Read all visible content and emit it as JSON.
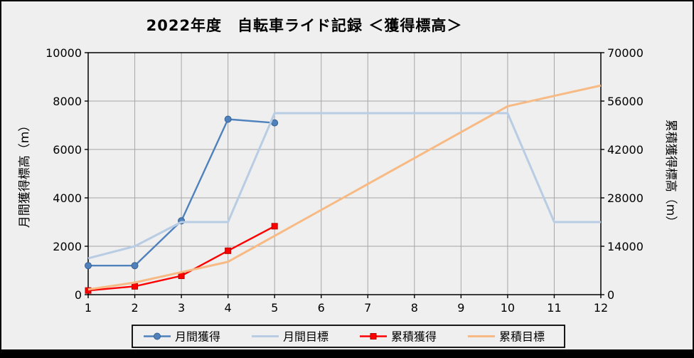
{
  "page": {
    "background": "#efefef",
    "gridline_color": "#a6a6a6",
    "border_color": "#000000"
  },
  "chart_data": {
    "type": "line",
    "title": "2022年度　自転車ライド記録 ＜獲得標高＞",
    "x": [
      1,
      2,
      3,
      4,
      5,
      6,
      7,
      8,
      9,
      10,
      11,
      12
    ],
    "left_axis": {
      "label": "月間獲得標高（m）",
      "min": 0,
      "max": 10000,
      "ticks": [
        0,
        2000,
        4000,
        6000,
        8000,
        10000
      ]
    },
    "right_axis": {
      "label": "累積獲得標高（m）",
      "min": 0,
      "max": 70000,
      "ticks": [
        0,
        14000,
        28000,
        42000,
        56000,
        70000
      ]
    },
    "grid": true,
    "legend_position": "bottom",
    "series": [
      {
        "id": "monthly-actual",
        "name": "月間獲得",
        "axis": "left",
        "color": "#4f81bd",
        "edge": "#38618f",
        "marker": "circle",
        "values": [
          1200,
          1200,
          3050,
          7250,
          7100,
          null,
          null,
          null,
          null,
          null,
          null,
          null
        ]
      },
      {
        "id": "monthly-target",
        "name": "月間目標",
        "axis": "left",
        "color": "#b8cce4",
        "edge": "#b8cce4",
        "marker": "none",
        "values": [
          1500,
          2000,
          3000,
          3000,
          7500,
          7500,
          7500,
          7500,
          7500,
          7500,
          3000,
          3000
        ]
      },
      {
        "id": "cumulative-actual",
        "name": "累積獲得",
        "axis": "right",
        "color": "#ff0000",
        "edge": "#b30000",
        "marker": "square",
        "values": [
          1200,
          2400,
          5450,
          12700,
          19800,
          null,
          null,
          null,
          null,
          null,
          null,
          null
        ]
      },
      {
        "id": "cumulative-target",
        "name": "累積目標",
        "axis": "right",
        "color": "#f7ba84",
        "edge": "#f7ba84",
        "marker": "none",
        "values": [
          1500,
          3500,
          6500,
          9500,
          17000,
          24500,
          32000,
          39500,
          47000,
          54500,
          57500,
          60500
        ]
      }
    ],
    "legend": [
      "月間獲得",
      "月間目標",
      "累積獲得",
      "累積目標"
    ]
  }
}
